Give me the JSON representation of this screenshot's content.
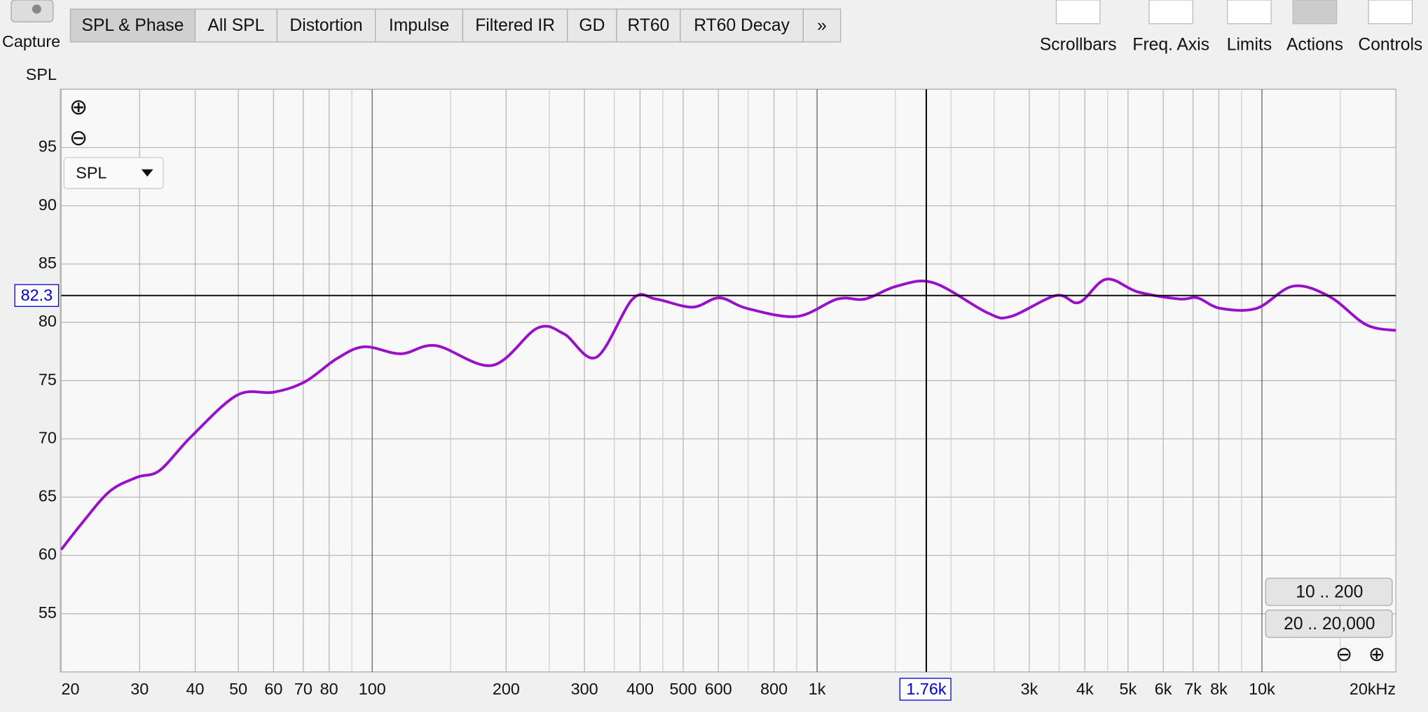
{
  "ui": {
    "capture": "Capture",
    "tabs": [
      "SPL & Phase",
      "All SPL",
      "Distortion",
      "Impulse",
      "Filtered IR",
      "GD",
      "RT60",
      "RT60 Decay",
      "»"
    ],
    "toolbar": [
      "Scrollbars",
      "Freq. Axis",
      "Limits",
      "Actions",
      "Controls"
    ],
    "dropdown": "SPL",
    "range_buttons": [
      "10 .. 200",
      "20 .. 20,000"
    ]
  },
  "chart_data": {
    "type": "line",
    "y_label": "SPL",
    "x_log": true,
    "xlim": [
      20,
      20000
    ],
    "ylim": [
      50,
      100
    ],
    "yticks": [
      55,
      60,
      65,
      70,
      75,
      80,
      85,
      90,
      95
    ],
    "xticks": [
      20,
      30,
      40,
      50,
      60,
      70,
      80,
      100,
      200,
      300,
      400,
      500,
      600,
      800,
      {
        "value": 1000,
        "label": "1k"
      },
      {
        "value": 3000,
        "label": "3k"
      },
      {
        "value": 4000,
        "label": "4k"
      },
      {
        "value": 5000,
        "label": "5k"
      },
      {
        "value": 6000,
        "label": "6k"
      },
      {
        "value": 7000,
        "label": "7k"
      },
      {
        "value": 8000,
        "label": "8k"
      },
      {
        "value": 10000,
        "label": "10k"
      },
      {
        "value": 20000,
        "label": "20kHz"
      }
    ],
    "minor_xticks": [
      90,
      150,
      250,
      350,
      450,
      700,
      900,
      1500,
      2000,
      2500,
      3500,
      4500,
      9000,
      15000
    ],
    "grid": true,
    "cursor": {
      "x": {
        "value": 1760,
        "label": "1.76k"
      },
      "y": 82.3
    },
    "series": [
      {
        "name": "SPL",
        "color": "#9a10c8",
        "x": [
          20,
          22.3,
          25.7,
          29.6,
          33.3,
          39.2,
          49.7,
          60,
          70.6,
          83.4,
          96,
          116,
          139,
          186,
          235,
          270,
          319,
          385,
          434,
          524,
          603,
          695,
          900,
          1112,
          1282,
          1510,
          1824,
          2420,
          2725,
          3445,
          3880,
          4467,
          5270,
          6520,
          7160,
          8055,
          9730,
          11750,
          14200,
          17140,
          20000
        ],
        "values": [
          60.5,
          62.8,
          65.5,
          66.7,
          67.3,
          70.2,
          73.75,
          74,
          74.9,
          76.9,
          77.9,
          77.3,
          78,
          76.3,
          79.5,
          79,
          77,
          82,
          82,
          81.3,
          82.1,
          81.2,
          80.5,
          82,
          82,
          83.1,
          83.4,
          80.8,
          80.5,
          82.3,
          81.7,
          83.7,
          82.6,
          82,
          82.1,
          81.2,
          81.2,
          83.1,
          82.2,
          79.8,
          79.3
        ]
      }
    ]
  }
}
